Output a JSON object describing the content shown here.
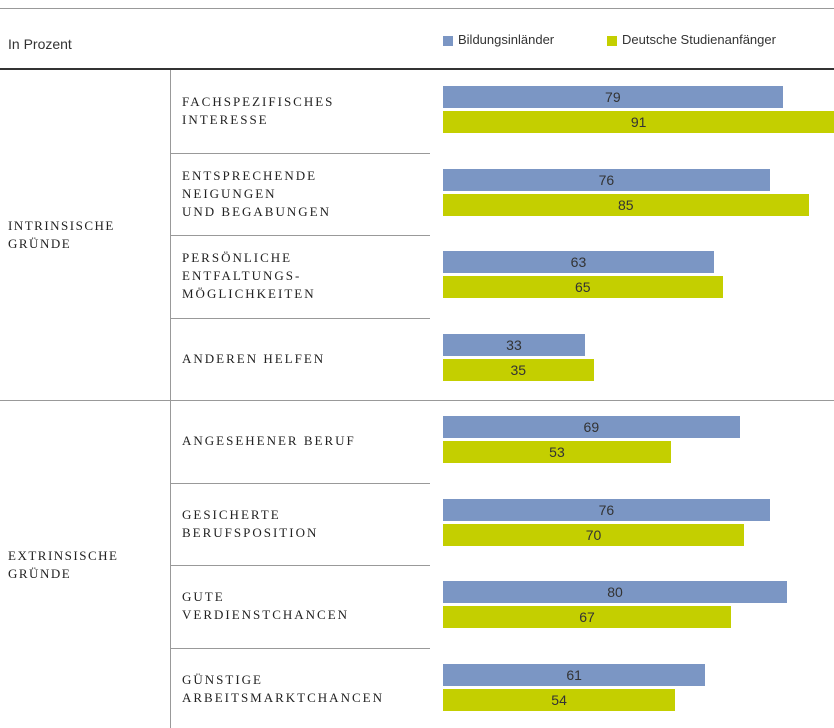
{
  "chart_data": {
    "type": "bar",
    "subtitle": "In Prozent",
    "groups": [
      {
        "label": "INTRINSISCHE\nGRÜNDE",
        "categories": [
          "FACHSPEZIFISCHES\nINTERESSE",
          "ENTSPRECHENDE\nNEIGUNGEN\nUND BEGABUNGEN",
          "PERSÖNLICHE\nENTFALTUNGS-\nMÖGLICHKEITEN",
          "ANDEREN HELFEN"
        ]
      },
      {
        "label": "EXTRINSISCHE\nGRÜNDE",
        "categories": [
          "ANGESEHENER BERUF",
          "GESICHERTE\nBERUFSPOSITION",
          "GUTE\nVERDIENSTCHANCEN",
          "GÜNSTIGE\nARBEITSMARKTCHANCEN"
        ]
      }
    ],
    "series": [
      {
        "name": "Bildungsinländer",
        "color": "#7b96c4",
        "values": [
          79,
          76,
          63,
          33,
          69,
          76,
          80,
          61
        ]
      },
      {
        "name": "Deutsche Studienanfänger",
        "color": "#c4cf00",
        "values": [
          91,
          85,
          65,
          35,
          53,
          70,
          67,
          54
        ]
      }
    ]
  }
}
